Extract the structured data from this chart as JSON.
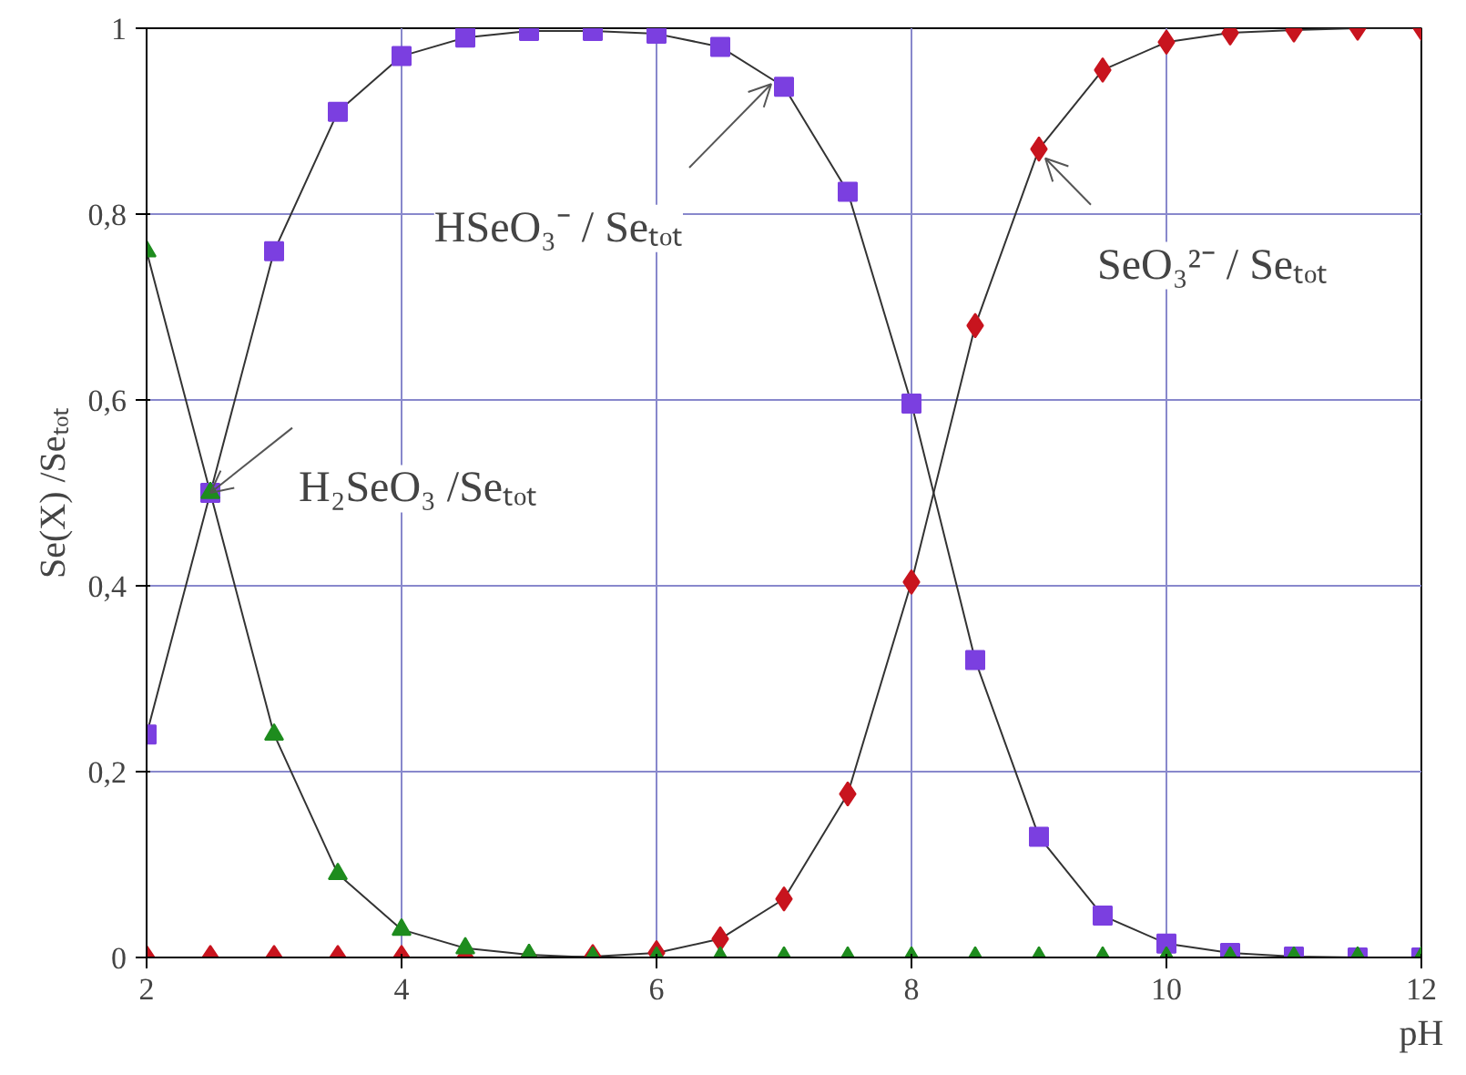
{
  "chart_data": {
    "type": "line",
    "xlabel": "pH",
    "ylabel": "Se(X) /Seₜₒₜ",
    "x": [
      2,
      2.5,
      3,
      3.5,
      4,
      4.5,
      5,
      5.5,
      6,
      6.5,
      7,
      7.5,
      8,
      8.5,
      9,
      9.5,
      10,
      10.5,
      11,
      11.5,
      12
    ],
    "series": [
      {
        "color": "#1e8c1e",
        "marker": "triangle",
        "values": [
          0.76,
          0.5,
          0.24,
          0.09,
          0.03,
          0.01,
          0.003,
          0,
          0,
          0,
          0,
          0,
          0,
          0,
          0,
          0,
          0,
          0,
          0,
          0,
          0
        ]
      },
      {
        "color": "#7b3fe0",
        "marker": "square",
        "values": [
          0.24,
          0.5,
          0.76,
          0.91,
          0.97,
          0.99,
          0.997,
          0.997,
          0.994,
          0.98,
          0.937,
          0.824,
          0.596,
          0.32,
          0.13,
          0.045,
          0.015,
          0.005,
          0.001,
          0,
          0
        ]
      },
      {
        "color": "#c8141e",
        "marker": "diamond",
        "values": [
          0,
          0,
          0,
          0,
          0,
          0,
          0,
          0.001,
          0.005,
          0.02,
          0.063,
          0.176,
          0.404,
          0.68,
          0.87,
          0.955,
          0.985,
          0.995,
          0.998,
          1,
          1
        ]
      }
    ],
    "xlim": [
      2,
      12
    ],
    "ylim": [
      0,
      1
    ],
    "xticks": [
      2,
      4,
      6,
      8,
      10,
      12
    ],
    "yticks": [
      0,
      {
        "value": 0.2,
        "label": "0,2"
      },
      {
        "value": 0.4,
        "label": "0,4"
      },
      {
        "value": 0.6,
        "label": "0,6"
      },
      {
        "value": 0.8,
        "label": "0,8"
      },
      1
    ],
    "grid": true,
    "annotations": [
      {
        "text": "H₂SeO₃ /Seₜₒₜ",
        "x": 2.5,
        "y": 0.5
      },
      {
        "text": "HSeO₃⁻ / Seₜₒₜ",
        "x": 6.9,
        "y": 0.94
      },
      {
        "text": "SeO₃²⁻ / Seₜₒₜ",
        "x": 9.05,
        "y": 0.86
      }
    ]
  }
}
